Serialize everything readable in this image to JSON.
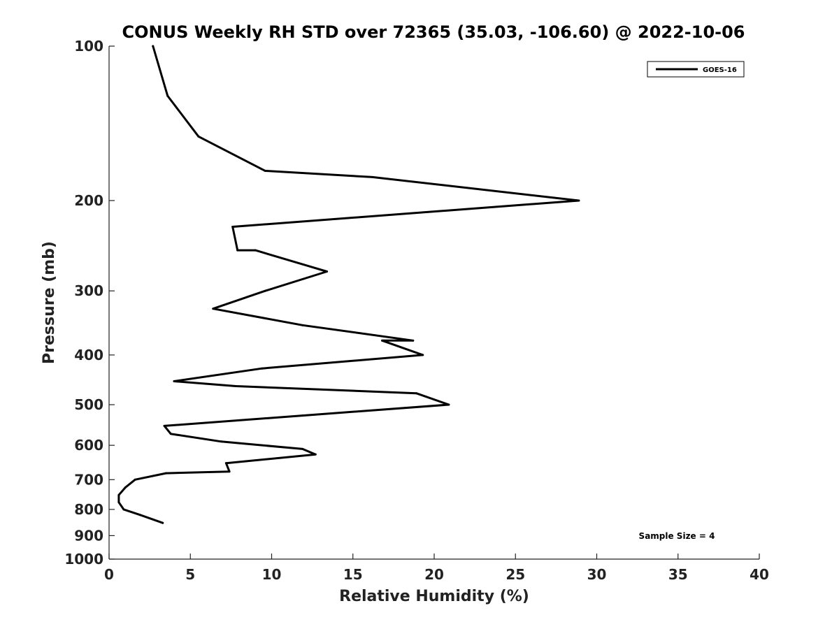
{
  "chart_data": {
    "type": "line",
    "title": "CONUS Weekly RH STD over 72365 (35.03, -106.60) @ 2022-10-06",
    "xlabel": "Relative Humidity (%)",
    "ylabel": "Pressure (mb)",
    "xlim": [
      0,
      40
    ],
    "ylim": [
      100,
      1000
    ],
    "y_scale": "log",
    "y_reversed": true,
    "grid": false,
    "legend_position": "top-right",
    "x_ticks": [
      "0",
      "5",
      "10",
      "15",
      "20",
      "25",
      "30",
      "35",
      "40"
    ],
    "y_ticks": [
      "100",
      "200",
      "300",
      "400",
      "500",
      "600",
      "700",
      "800",
      "900",
      "1000"
    ],
    "annotation": "Sample Size = 4",
    "series": [
      {
        "name": "GOES-16",
        "color": "#000000",
        "points": [
          {
            "x": 2.7,
            "y": 100
          },
          {
            "x": 3.6,
            "y": 125
          },
          {
            "x": 5.5,
            "y": 150
          },
          {
            "x": 9.6,
            "y": 175
          },
          {
            "x": 16.2,
            "y": 180
          },
          {
            "x": 28.9,
            "y": 200
          },
          {
            "x": 7.6,
            "y": 225
          },
          {
            "x": 7.9,
            "y": 250
          },
          {
            "x": 9.0,
            "y": 250
          },
          {
            "x": 13.4,
            "y": 275
          },
          {
            "x": 9.6,
            "y": 300
          },
          {
            "x": 6.4,
            "y": 325
          },
          {
            "x": 11.9,
            "y": 350
          },
          {
            "x": 18.7,
            "y": 375
          },
          {
            "x": 16.8,
            "y": 375
          },
          {
            "x": 19.3,
            "y": 400
          },
          {
            "x": 9.4,
            "y": 425
          },
          {
            "x": 4.0,
            "y": 450
          },
          {
            "x": 7.8,
            "y": 460
          },
          {
            "x": 18.9,
            "y": 475
          },
          {
            "x": 20.9,
            "y": 500
          },
          {
            "x": 11.9,
            "y": 525
          },
          {
            "x": 3.4,
            "y": 550
          },
          {
            "x": 3.8,
            "y": 570
          },
          {
            "x": 6.9,
            "y": 590
          },
          {
            "x": 11.9,
            "y": 610
          },
          {
            "x": 12.7,
            "y": 625
          },
          {
            "x": 7.2,
            "y": 650
          },
          {
            "x": 7.4,
            "y": 675
          },
          {
            "x": 3.5,
            "y": 680
          },
          {
            "x": 1.6,
            "y": 700
          },
          {
            "x": 1.0,
            "y": 725
          },
          {
            "x": 0.6,
            "y": 750
          },
          {
            "x": 0.6,
            "y": 775
          },
          {
            "x": 0.9,
            "y": 800
          },
          {
            "x": 1.9,
            "y": 820
          },
          {
            "x": 3.3,
            "y": 850
          }
        ]
      }
    ]
  }
}
